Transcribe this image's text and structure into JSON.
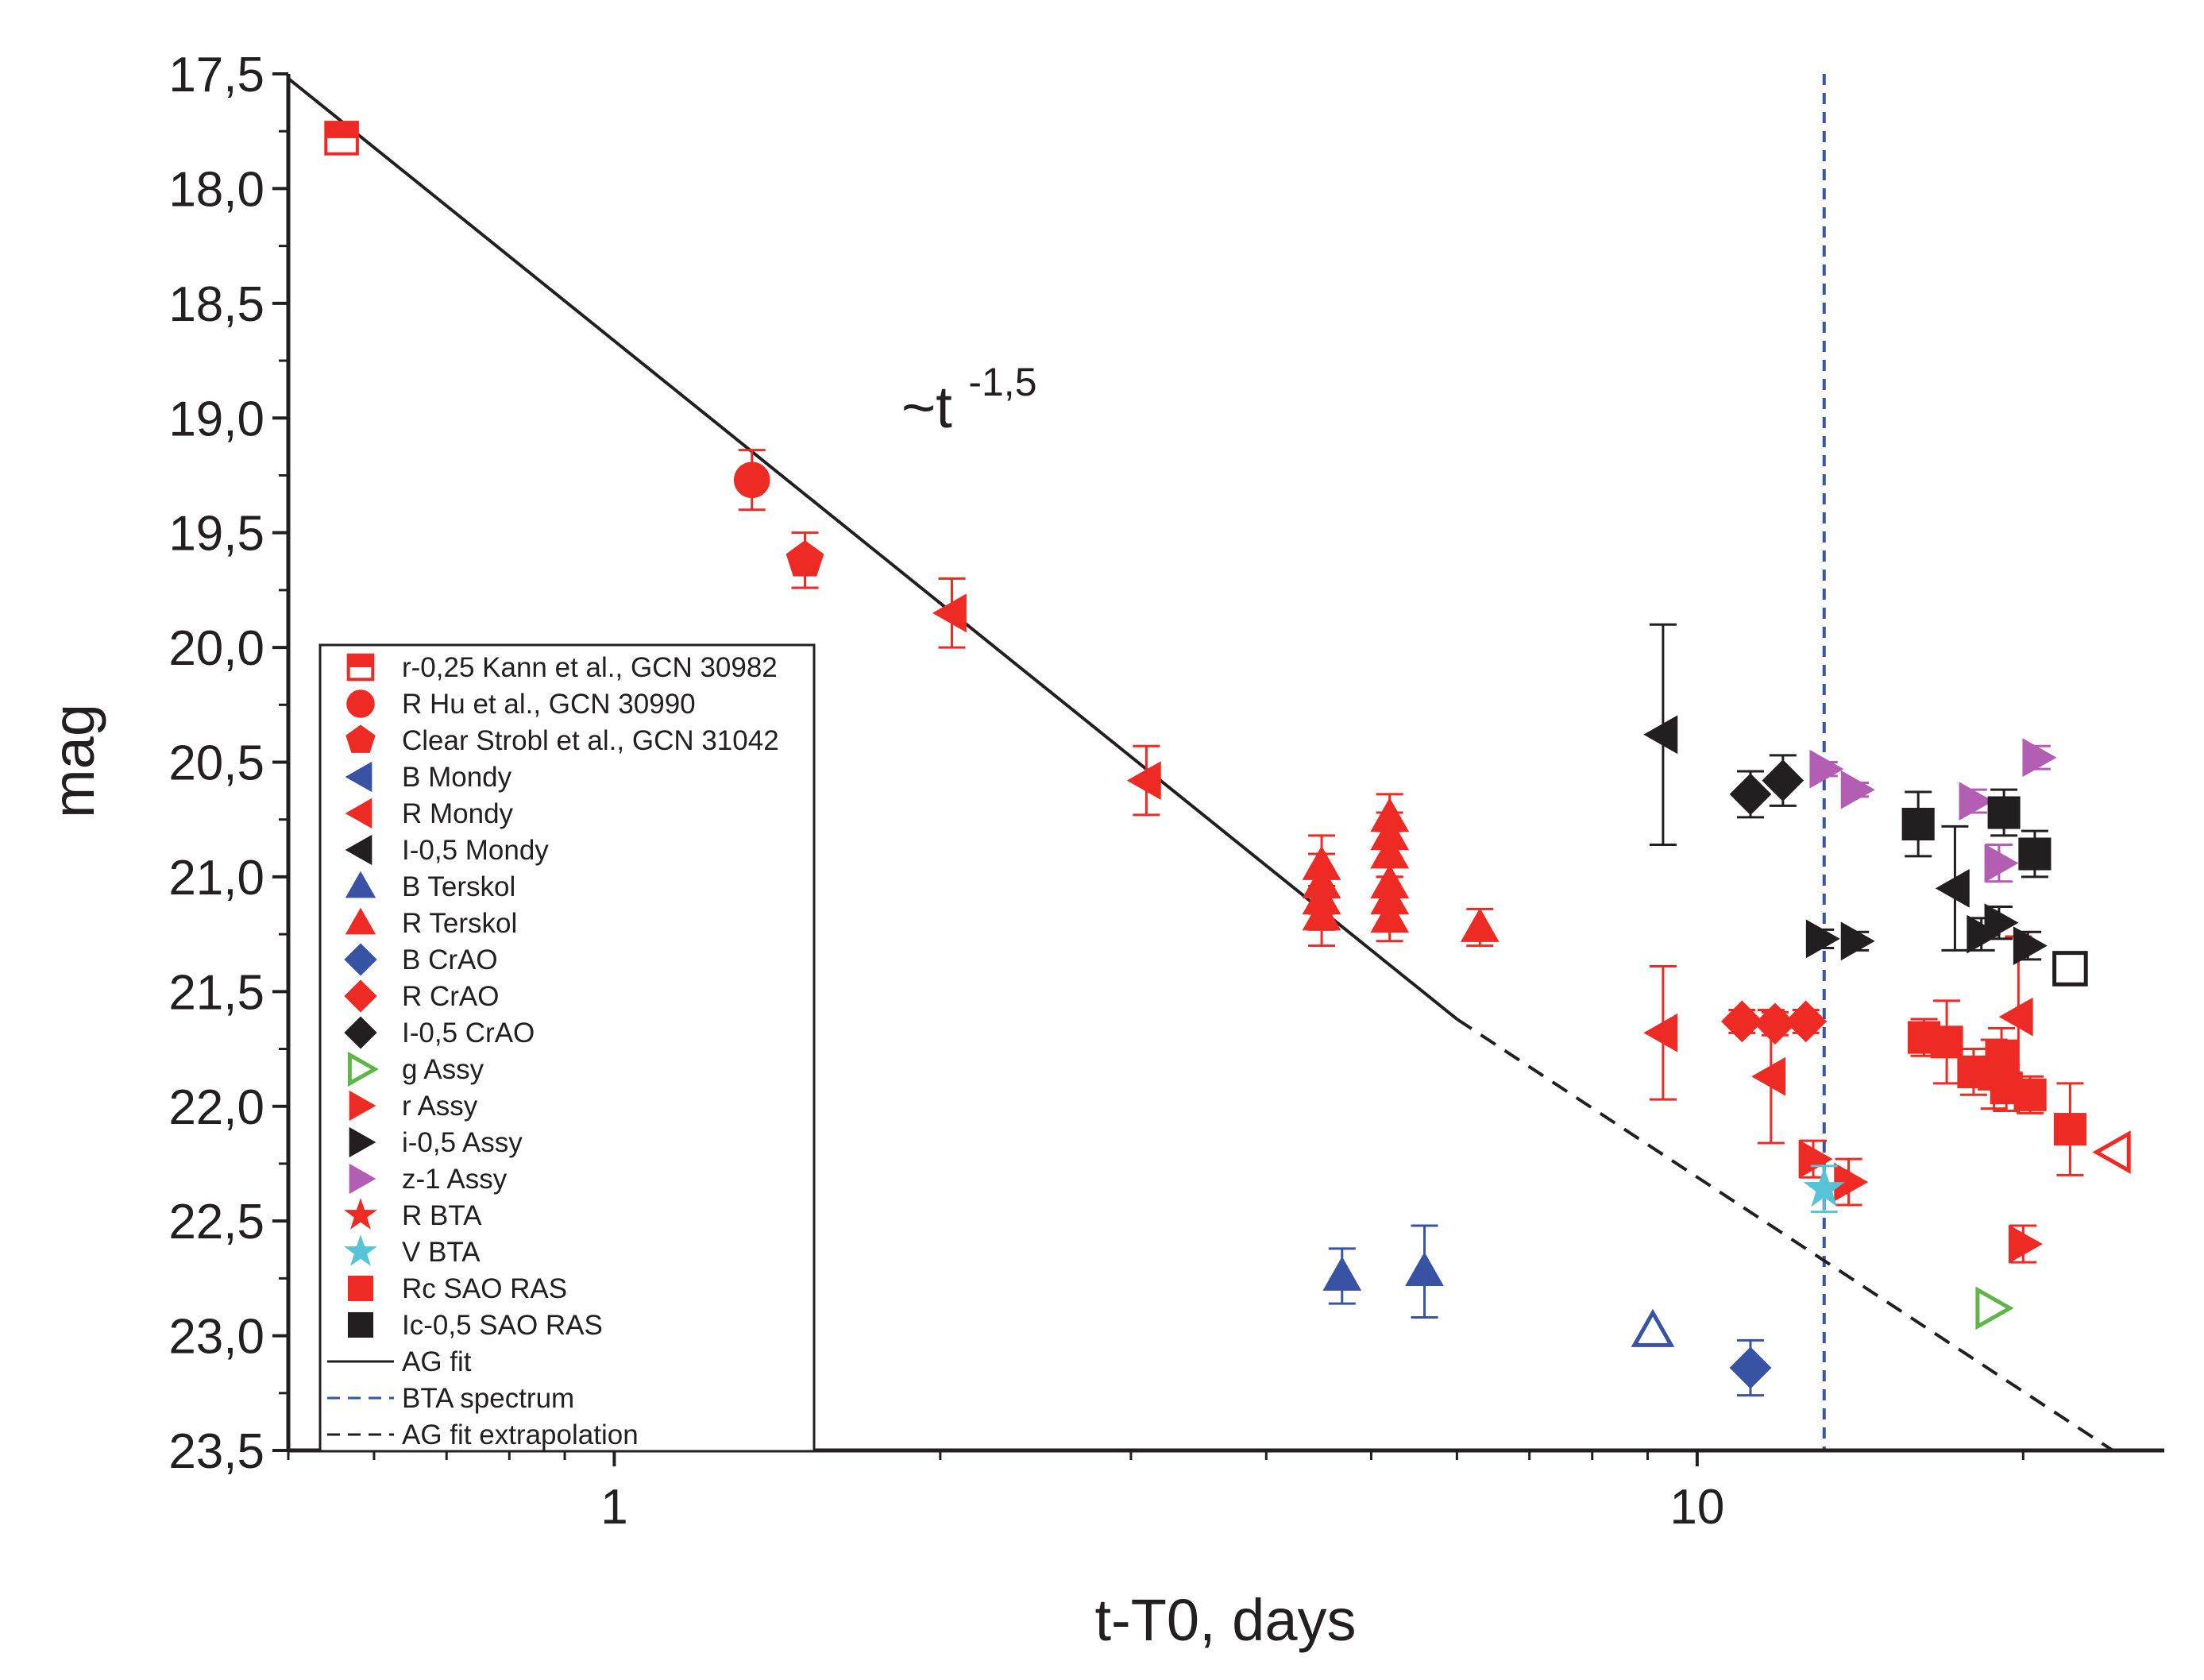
{
  "chart_data": {
    "type": "scatter",
    "xscale": "log",
    "yaxis_inverted": true,
    "xlim": [
      0.5,
      27
    ],
    "ylim": [
      17.5,
      23.5
    ],
    "xlabel": "t-T0, days",
    "ylabel": "mag",
    "grid": false,
    "legend_placement": "bottom-left",
    "x_tick_labels": [
      {
        "value": 1,
        "label": "1"
      },
      {
        "value": 10,
        "label": "10"
      }
    ],
    "y_tick_labels": [
      {
        "value": 17.5,
        "label": "17,5"
      },
      {
        "value": 18.0,
        "label": "18,0"
      },
      {
        "value": 18.5,
        "label": "18,5"
      },
      {
        "value": 19.0,
        "label": "19,0"
      },
      {
        "value": 19.5,
        "label": "19,5"
      },
      {
        "value": 20.0,
        "label": "20,0"
      },
      {
        "value": 20.5,
        "label": "20,5"
      },
      {
        "value": 21.0,
        "label": "21,0"
      },
      {
        "value": 21.5,
        "label": "21,5"
      },
      {
        "value": 22.0,
        "label": "22,0"
      },
      {
        "value": 22.5,
        "label": "22,5"
      },
      {
        "value": 23.0,
        "label": "23,0"
      },
      {
        "value": 23.5,
        "label": "23,5"
      }
    ],
    "annotation": {
      "base": "~t",
      "exponent": "-1,5",
      "x": 1.55,
      "y": 19.0
    },
    "series": [
      {
        "name": "r-0,25 Kann et al., GCN 30982",
        "color": "#ee2a24",
        "marker": "square-half",
        "points": [
          [
            0.56,
            17.78,
            0.05
          ]
        ]
      },
      {
        "name": "R Hu et al., GCN 30990",
        "color": "#ee2a24",
        "marker": "circle",
        "points": [
          [
            1.34,
            19.27,
            0.13
          ]
        ]
      },
      {
        "name": "Clear Strobl et al., GCN 31042",
        "color": "#ee2a24",
        "marker": "pentagon",
        "points": [
          [
            1.5,
            19.62,
            0.12
          ]
        ]
      },
      {
        "name": "B Mondy",
        "color": "#3953a4",
        "marker": "triangle-left",
        "points": []
      },
      {
        "name": "R Mondy",
        "color": "#ee2a24",
        "marker": "triangle-left",
        "points": [
          [
            2.05,
            19.85,
            0.15
          ],
          [
            3.1,
            20.58,
            0.15
          ],
          [
            9.3,
            21.68,
            0.29
          ],
          [
            11.7,
            21.87,
            0.29
          ],
          [
            19.8,
            21.61,
            0.35
          ]
        ]
      },
      {
        "name": "I-0,5 Mondy",
        "color": "#231f20",
        "marker": "triangle-left",
        "points": [
          [
            9.3,
            20.38,
            0.48
          ],
          [
            17.3,
            21.05,
            0.27
          ]
        ]
      },
      {
        "name": "B Terskol",
        "color": "#3953a4",
        "marker": "triangle-up",
        "points": [
          [
            4.7,
            22.74,
            0.12
          ],
          [
            5.6,
            22.72,
            0.2
          ]
        ]
      },
      {
        "name": "R Terskol",
        "color": "#ee2a24",
        "marker": "triangle-up",
        "points": [
          [
            4.5,
            20.95,
            0.13
          ],
          [
            4.5,
            21.03,
            0.13
          ],
          [
            4.5,
            21.1,
            0.13
          ],
          [
            4.5,
            21.17,
            0.13
          ],
          [
            5.2,
            20.74,
            0.1
          ],
          [
            5.2,
            20.82,
            0.1
          ],
          [
            5.2,
            20.9,
            0.1
          ],
          [
            5.2,
            21.03,
            0.1
          ],
          [
            5.2,
            21.1,
            0.1
          ],
          [
            5.2,
            21.18,
            0.1
          ],
          [
            6.3,
            21.22,
            0.08
          ]
        ]
      },
      {
        "name": "B CrAO",
        "color": "#3953a4",
        "marker": "diamond",
        "points": [
          [
            11.2,
            23.14,
            0.12
          ]
        ]
      },
      {
        "name": "R CrAO",
        "color": "#ee2a24",
        "marker": "diamond",
        "points": [
          [
            11.0,
            21.63,
            0.05
          ],
          [
            11.8,
            21.64,
            0.05
          ],
          [
            12.6,
            21.63,
            0.05
          ]
        ]
      },
      {
        "name": "I-0,5 CrAO",
        "color": "#231f20",
        "marker": "diamond",
        "points": [
          [
            11.2,
            20.64,
            0.1
          ],
          [
            12.0,
            20.58,
            0.11
          ]
        ]
      },
      {
        "name": "g Assy",
        "color": "#5fb548",
        "marker": "triangle-right-open",
        "points": [
          [
            18.7,
            22.88,
            0
          ]
        ]
      },
      {
        "name": "r Assy",
        "color": "#ee2a24",
        "marker": "triangle-right",
        "points": [
          [
            12.8,
            22.23,
            0.08
          ],
          [
            13.8,
            22.33,
            0.1
          ],
          [
            20.0,
            22.6,
            0.08
          ]
        ]
      },
      {
        "name": "i-0,5 Assy",
        "color": "#231f20",
        "marker": "triangle-right",
        "points": [
          [
            13.0,
            21.27,
            0.04
          ],
          [
            14.0,
            21.28,
            0.04
          ],
          [
            18.3,
            21.25,
            0.07
          ],
          [
            19.0,
            21.2,
            0.07
          ],
          [
            20.2,
            21.3,
            0.06
          ]
        ]
      },
      {
        "name": "z-1 Assy",
        "color": "#b15eb3",
        "marker": "triangle-right",
        "points": [
          [
            13.1,
            20.53,
            0.03
          ],
          [
            14.0,
            20.62,
            0.03
          ],
          [
            18.0,
            20.67,
            0.05
          ],
          [
            19.0,
            20.94,
            0.08
          ],
          [
            20.6,
            20.48,
            0.05
          ]
        ]
      },
      {
        "name": "R BTA",
        "color": "#ee2a24",
        "marker": "star",
        "points": []
      },
      {
        "name": "V BTA",
        "color": "#57c3d6",
        "marker": "star",
        "points": [
          [
            13.1,
            22.36,
            0.1
          ]
        ]
      },
      {
        "name": "Rc SAO RAS",
        "color": "#ee2a24",
        "marker": "square",
        "points": [
          [
            16.2,
            21.7,
            0.08
          ],
          [
            17.0,
            21.72,
            0.18
          ],
          [
            18.0,
            21.85,
            0.1
          ],
          [
            18.8,
            21.86,
            0.15
          ],
          [
            19.1,
            21.78,
            0.12
          ],
          [
            19.3,
            21.92,
            0.1
          ],
          [
            20.3,
            21.95,
            0.08
          ],
          [
            22.1,
            22.1,
            0.2
          ]
        ]
      },
      {
        "name": "Ic-0,5 SAO RAS",
        "color": "#231f20",
        "marker": "square",
        "points": [
          [
            16.0,
            20.77,
            0.14
          ],
          [
            19.2,
            20.72,
            0.1
          ],
          [
            20.5,
            20.9,
            0.1
          ]
        ]
      },
      {
        "name": "Rc SAO RAS (open)",
        "color": "#ee2a24",
        "marker": "triangle-left-open",
        "points": [
          [
            24.3,
            22.2,
            0
          ]
        ]
      },
      {
        "name": "B Terskol (open)",
        "color": "#3953a4",
        "marker": "triangle-up-open",
        "points": [
          [
            9.1,
            22.98,
            0
          ]
        ]
      },
      {
        "name": "Ic-0,5 SAO RAS (open)",
        "color": "#231f20",
        "marker": "square-open",
        "points": [
          [
            22.1,
            21.4,
            0
          ]
        ]
      }
    ],
    "lines": [
      {
        "name": "AG fit",
        "color": "#231f20",
        "style": "solid",
        "points": [
          [
            0.5,
            17.52
          ],
          [
            6.0,
            21.62
          ]
        ]
      },
      {
        "name": "BTA spectrum",
        "color": "#3953a4",
        "style": "dashed",
        "points": [
          [
            13.1,
            17.5
          ],
          [
            13.1,
            23.5
          ]
        ]
      },
      {
        "name": "AG fit extrapolation",
        "color": "#231f20",
        "style": "dashed",
        "points": [
          [
            6.0,
            21.62
          ],
          [
            24.2,
            23.5
          ]
        ]
      }
    ],
    "legend": [
      {
        "label": "r-0,25 Kann et al., GCN 30982",
        "color": "#ee2a24",
        "marker": "square-half"
      },
      {
        "label": "R Hu et al., GCN 30990",
        "color": "#ee2a24",
        "marker": "circle"
      },
      {
        "label": "Clear Strobl et al., GCN 31042",
        "color": "#ee2a24",
        "marker": "pentagon"
      },
      {
        "label": "B Mondy",
        "color": "#3953a4",
        "marker": "triangle-left"
      },
      {
        "label": "R Mondy",
        "color": "#ee2a24",
        "marker": "triangle-left"
      },
      {
        "label": "I-0,5 Mondy",
        "color": "#231f20",
        "marker": "triangle-left"
      },
      {
        "label": "B Terskol",
        "color": "#3953a4",
        "marker": "triangle-up"
      },
      {
        "label": "R Terskol",
        "color": "#ee2a24",
        "marker": "triangle-up"
      },
      {
        "label": "B CrAO",
        "color": "#3953a4",
        "marker": "diamond"
      },
      {
        "label": "R CrAO",
        "color": "#ee2a24",
        "marker": "diamond"
      },
      {
        "label": "I-0,5 CrAO",
        "color": "#231f20",
        "marker": "diamond"
      },
      {
        "label": "g Assy",
        "color": "#5fb548",
        "marker": "triangle-right-open"
      },
      {
        "label": "r Assy",
        "color": "#ee2a24",
        "marker": "triangle-right"
      },
      {
        "label": "i-0,5 Assy",
        "color": "#231f20",
        "marker": "triangle-right"
      },
      {
        "label": "z-1 Assy",
        "color": "#b15eb3",
        "marker": "triangle-right"
      },
      {
        "label": "R BTA",
        "color": "#ee2a24",
        "marker": "star"
      },
      {
        "label": "V BTA",
        "color": "#57c3d6",
        "marker": "star"
      },
      {
        "label": "Rc SAO RAS",
        "color": "#ee2a24",
        "marker": "square"
      },
      {
        "label": "Ic-0,5 SAO RAS",
        "color": "#231f20",
        "marker": "square"
      },
      {
        "label": "AG fit",
        "color": "#231f20",
        "marker": "line-solid"
      },
      {
        "label": "BTA spectrum",
        "color": "#3953a4",
        "marker": "line-dashed"
      },
      {
        "label": "AG fit extrapolation",
        "color": "#231f20",
        "marker": "line-dashed"
      }
    ]
  }
}
